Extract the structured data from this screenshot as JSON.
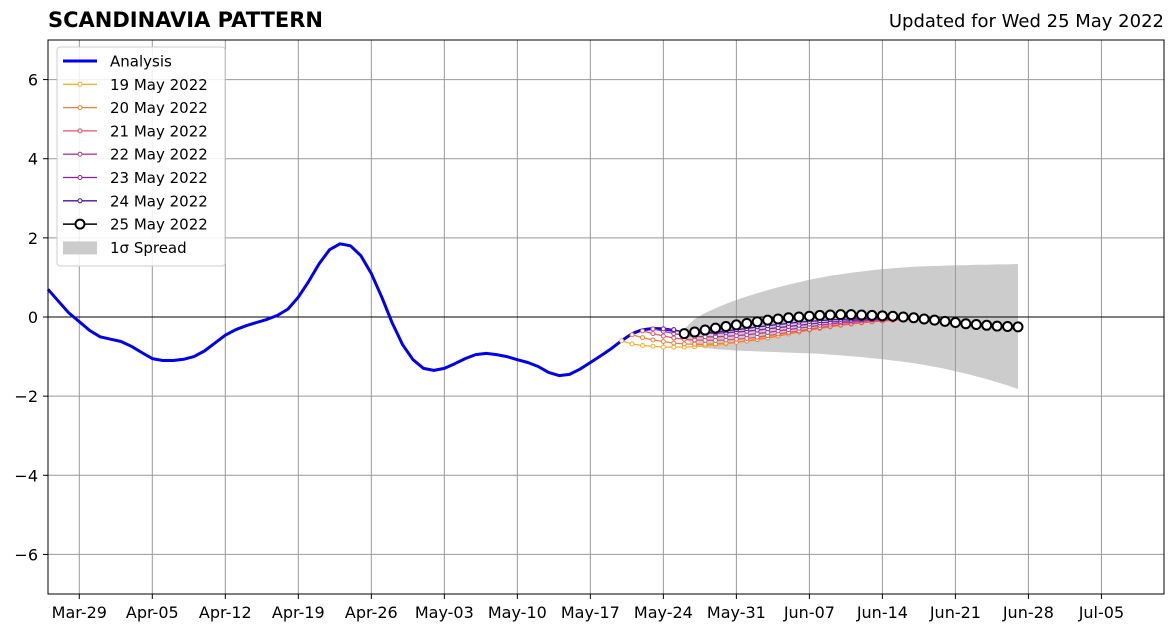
{
  "title": "SCANDINAVIA PATTERN",
  "updated": "Updated for Wed 25 May 2022",
  "chart_data": {
    "type": "line",
    "title": "SCANDINAVIA PATTERN",
    "subtitle": "Updated for Wed 25 May 2022",
    "xlabel": "",
    "ylabel": "",
    "x_start": "2022-03-25",
    "xlim_days": [
      0,
      107
    ],
    "ylim": [
      -7,
      7
    ],
    "yticks": [
      -6,
      -4,
      -2,
      0,
      2,
      4,
      6
    ],
    "ytick_labels": [
      "−6",
      "−4",
      "−2",
      "0",
      "2",
      "4",
      "6"
    ],
    "xticks": [
      {
        "day": 3,
        "label": "Mar-29"
      },
      {
        "day": 10,
        "label": "Apr-05"
      },
      {
        "day": 17,
        "label": "Apr-12"
      },
      {
        "day": 24,
        "label": "Apr-19"
      },
      {
        "day": 31,
        "label": "Apr-26"
      },
      {
        "day": 38,
        "label": "May-03"
      },
      {
        "day": 45,
        "label": "May-10"
      },
      {
        "day": 52,
        "label": "May-17"
      },
      {
        "day": 59,
        "label": "May-24"
      },
      {
        "day": 66,
        "label": "May-31"
      },
      {
        "day": 73,
        "label": "Jun-07"
      },
      {
        "day": 80,
        "label": "Jun-14"
      },
      {
        "day": 87,
        "label": "Jun-21"
      },
      {
        "day": 94,
        "label": "Jun-28"
      },
      {
        "day": 101,
        "label": "Jul-05"
      }
    ],
    "grid": true,
    "zero_line": true,
    "legend_position": "top-left",
    "legend": [
      "Analysis",
      "19 May 2022",
      "20 May 2022",
      "21 May 2022",
      "22 May 2022",
      "23 May 2022",
      "24 May 2022",
      "25 May 2022",
      "1σ Spread"
    ],
    "series": [
      {
        "name": "Analysis",
        "color": "#0000ee",
        "style": "thick",
        "start_day": 0,
        "values": [
          0.7,
          0.4,
          0.1,
          -0.12,
          -0.34,
          -0.5,
          -0.56,
          -0.62,
          -0.74,
          -0.9,
          -1.05,
          -1.1,
          -1.1,
          -1.07,
          -1.0,
          -0.86,
          -0.66,
          -0.46,
          -0.32,
          -0.22,
          -0.14,
          -0.06,
          0.04,
          0.2,
          0.5,
          0.9,
          1.35,
          1.7,
          1.85,
          1.8,
          1.55,
          1.1,
          0.5,
          -0.15,
          -0.7,
          -1.08,
          -1.3,
          -1.35,
          -1.3,
          -1.18,
          -1.05,
          -0.95,
          -0.92,
          -0.95,
          -1.0,
          -1.08,
          -1.15,
          -1.25,
          -1.4,
          -1.48,
          -1.45,
          -1.32,
          -1.15,
          -0.98,
          -0.8,
          -0.6,
          -0.42,
          -0.32,
          -0.29,
          -0.3,
          -0.34
        ]
      },
      {
        "name": "19 May 2022",
        "color": "#f5b02c",
        "style": "small-marker",
        "start_day": 55,
        "values": [
          -0.6,
          -0.68,
          -0.72,
          -0.74,
          -0.76,
          -0.76,
          -0.76,
          -0.75,
          -0.73,
          -0.71,
          -0.68,
          -0.64,
          -0.6,
          -0.55,
          -0.5,
          -0.45,
          -0.4,
          -0.35,
          -0.3,
          -0.26,
          -0.22,
          -0.18,
          -0.15,
          -0.12,
          -0.1,
          -0.08,
          -0.06,
          -0.04,
          -0.03,
          -0.02,
          -0.02
        ]
      },
      {
        "name": "20 May 2022",
        "color": "#f0803a",
        "style": "small-marker",
        "start_day": 56,
        "values": [
          -0.45,
          -0.52,
          -0.58,
          -0.62,
          -0.66,
          -0.68,
          -0.69,
          -0.69,
          -0.68,
          -0.66,
          -0.64,
          -0.61,
          -0.57,
          -0.53,
          -0.48,
          -0.43,
          -0.38,
          -0.33,
          -0.29,
          -0.25,
          -0.21,
          -0.18,
          -0.15,
          -0.12,
          -0.1,
          -0.08,
          -0.06,
          -0.05,
          -0.04,
          -0.03
        ]
      },
      {
        "name": "21 May 2022",
        "color": "#e0566a",
        "style": "small-marker",
        "start_day": 57,
        "values": [
          -0.35,
          -0.42,
          -0.48,
          -0.53,
          -0.56,
          -0.58,
          -0.59,
          -0.59,
          -0.58,
          -0.56,
          -0.54,
          -0.51,
          -0.47,
          -0.43,
          -0.39,
          -0.35,
          -0.31,
          -0.27,
          -0.23,
          -0.2,
          -0.17,
          -0.14,
          -0.12,
          -0.1,
          -0.08,
          -0.06,
          -0.05,
          -0.04,
          -0.03
        ]
      },
      {
        "name": "22 May 2022",
        "color": "#b23c8c",
        "style": "small-marker",
        "start_day": 58,
        "values": [
          -0.3,
          -0.36,
          -0.42,
          -0.46,
          -0.49,
          -0.5,
          -0.5,
          -0.49,
          -0.47,
          -0.45,
          -0.42,
          -0.39,
          -0.35,
          -0.32,
          -0.28,
          -0.25,
          -0.21,
          -0.18,
          -0.15,
          -0.13,
          -0.1,
          -0.08,
          -0.07,
          -0.05,
          -0.04,
          -0.03,
          -0.02,
          -0.02
        ]
      },
      {
        "name": "23 May 2022",
        "color": "#8a1ca6",
        "style": "small-marker",
        "start_day": 59,
        "values": [
          -0.3,
          -0.34,
          -0.38,
          -0.4,
          -0.41,
          -0.41,
          -0.4,
          -0.38,
          -0.36,
          -0.33,
          -0.3,
          -0.27,
          -0.24,
          -0.21,
          -0.18,
          -0.15,
          -0.13,
          -0.11,
          -0.09,
          -0.07,
          -0.06,
          -0.05,
          -0.04,
          -0.03,
          -0.03,
          -0.02,
          -0.02
        ]
      },
      {
        "name": "24 May 2022",
        "color": "#4a0fa6",
        "style": "small-marker",
        "start_day": 60,
        "values": [
          -0.32,
          -0.38,
          -0.4,
          -0.4,
          -0.38,
          -0.35,
          -0.32,
          -0.29,
          -0.25,
          -0.22,
          -0.19,
          -0.16,
          -0.13,
          -0.11,
          -0.09,
          -0.07,
          -0.06,
          -0.05,
          -0.04,
          -0.03,
          -0.03,
          -0.02,
          -0.02,
          -0.02,
          -0.02,
          -0.02
        ]
      },
      {
        "name": "25 May 2022",
        "color": "#000000",
        "style": "big-marker",
        "start_day": 61,
        "values": [
          -0.42,
          -0.38,
          -0.33,
          -0.28,
          -0.24,
          -0.2,
          -0.16,
          -0.12,
          -0.08,
          -0.05,
          -0.02,
          0.0,
          0.02,
          0.04,
          0.05,
          0.06,
          0.06,
          0.05,
          0.04,
          0.03,
          0.02,
          0.0,
          -0.02,
          -0.05,
          -0.08,
          -0.11,
          -0.14,
          -0.17,
          -0.19,
          -0.21,
          -0.23,
          -0.24,
          -0.25
        ]
      }
    ],
    "spread": {
      "name": "1σ Spread",
      "color": "#cccccc",
      "start_day": 61,
      "upper": [
        -0.3,
        -0.05,
        0.1,
        0.22,
        0.33,
        0.43,
        0.52,
        0.6,
        0.68,
        0.75,
        0.82,
        0.88,
        0.94,
        0.99,
        1.04,
        1.08,
        1.12,
        1.15,
        1.18,
        1.21,
        1.23,
        1.25,
        1.27,
        1.28,
        1.29,
        1.3,
        1.31,
        1.31,
        1.32,
        1.32,
        1.33,
        1.33,
        1.34
      ],
      "lower": [
        -0.55,
        -0.72,
        -0.78,
        -0.81,
        -0.83,
        -0.85,
        -0.86,
        -0.87,
        -0.88,
        -0.89,
        -0.9,
        -0.91,
        -0.92,
        -0.93,
        -0.95,
        -0.97,
        -0.99,
        -1.01,
        -1.04,
        -1.07,
        -1.1,
        -1.13,
        -1.17,
        -1.21,
        -1.26,
        -1.31,
        -1.37,
        -1.43,
        -1.5,
        -1.57,
        -1.65,
        -1.73,
        -1.82
      ]
    }
  }
}
